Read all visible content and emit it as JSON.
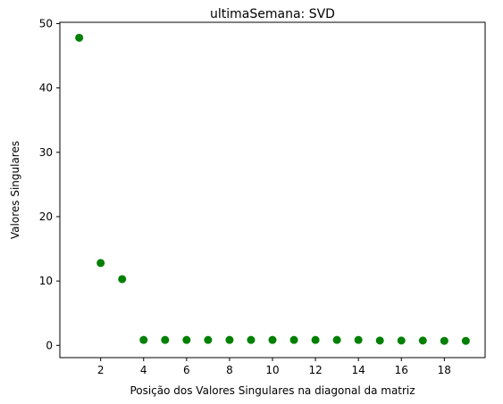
{
  "chart_data": {
    "type": "scatter",
    "title": "ultimaSemana: SVD",
    "xlabel": "Posição dos Valores Singulares na diagonal da matriz",
    "ylabel": "Valores Singulares",
    "xlim": [
      0.1,
      19.9
    ],
    "ylim": [
      -1.9,
      50.2
    ],
    "xticks": [
      2,
      4,
      6,
      8,
      10,
      12,
      14,
      16,
      18
    ],
    "yticks": [
      0,
      10,
      20,
      30,
      40,
      50
    ],
    "grid": false,
    "marker_color": "#008000",
    "series": [
      {
        "x": [
          1,
          2,
          3,
          4,
          5,
          6,
          7,
          8,
          9,
          10,
          11,
          12,
          13,
          14,
          15,
          16,
          17,
          18,
          19
        ],
        "y": [
          47.8,
          12.8,
          10.3,
          0.85,
          0.85,
          0.85,
          0.85,
          0.85,
          0.85,
          0.85,
          0.85,
          0.85,
          0.85,
          0.85,
          0.75,
          0.75,
          0.75,
          0.7,
          0.7
        ]
      }
    ]
  }
}
